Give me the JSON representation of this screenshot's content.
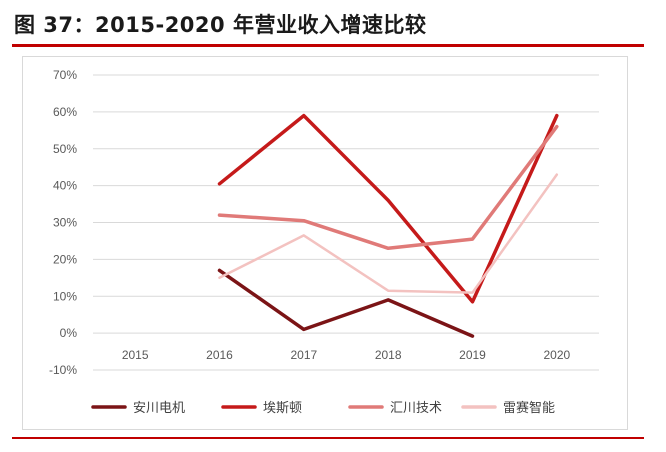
{
  "figure_title": "图 37：2015-2020 年营业收入增速比较",
  "chart_data": {
    "type": "line",
    "title": "",
    "xlabel": "",
    "ylabel": "",
    "categories": [
      "2015",
      "2016",
      "2017",
      "2018",
      "2019",
      "2020"
    ],
    "ylim": [
      -10,
      70
    ],
    "yticks": [
      "70%",
      "60%",
      "50%",
      "40%",
      "30%",
      "20%",
      "10%",
      "0%",
      "-10%"
    ],
    "ytick_values": [
      70,
      60,
      50,
      40,
      30,
      20,
      10,
      0,
      -10
    ],
    "grid": "horizontal",
    "legend_position": "bottom",
    "series": [
      {
        "name": "安川电机",
        "color": "#7b1416",
        "values": [
          null,
          17.0,
          1.0,
          9.0,
          -0.8,
          null
        ]
      },
      {
        "name": "埃斯顿",
        "color": "#c51a1a",
        "values": [
          null,
          40.5,
          59.0,
          36.0,
          8.5,
          59.0
        ]
      },
      {
        "name": "汇川技术",
        "color": "#e07a78",
        "values": [
          null,
          32.0,
          30.5,
          23.0,
          25.5,
          56.0
        ]
      },
      {
        "name": "雷赛智能",
        "color": "#f3c2c0",
        "values": [
          null,
          15.0,
          26.5,
          11.5,
          11.0,
          43.0
        ]
      }
    ]
  }
}
